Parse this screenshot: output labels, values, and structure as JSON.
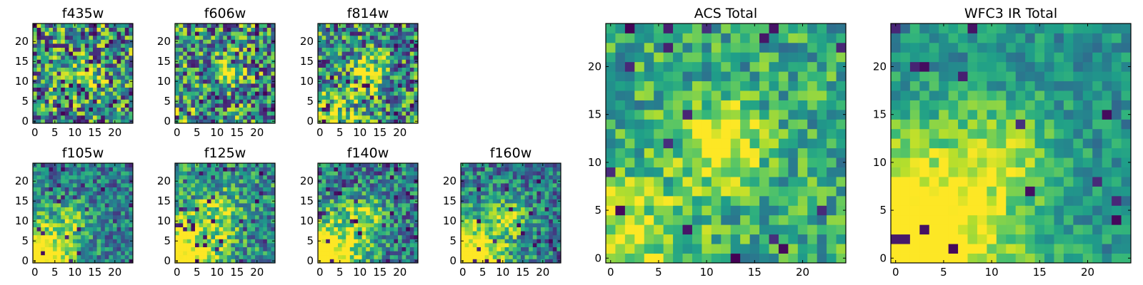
{
  "figure": {
    "colormap": "viridis",
    "grid_size": 25,
    "value_range": [
      0,
      1
    ]
  },
  "chart_data": [
    {
      "type": "heatmap",
      "title": "f435w",
      "xticks": [
        0,
        5,
        10,
        15,
        20
      ],
      "yticks": [
        0,
        5,
        10,
        15,
        20
      ],
      "xlim": [
        0,
        24
      ],
      "ylim": [
        0,
        24
      ],
      "seed": 11,
      "noise": 0.95,
      "blobs": [
        {
          "x": 13,
          "y": 12,
          "r": 2.2,
          "a": 0.55
        },
        {
          "x": 0,
          "y": 0,
          "r": 3,
          "a": 0.1
        }
      ],
      "dark_frac": 0.07,
      "base": 0.5
    },
    {
      "type": "heatmap",
      "title": "f606w",
      "xticks": [
        0,
        5,
        10,
        15,
        20
      ],
      "yticks": [
        0,
        5,
        10,
        15,
        20
      ],
      "xlim": [
        0,
        24
      ],
      "ylim": [
        0,
        24
      ],
      "seed": 23,
      "noise": 0.9,
      "blobs": [
        {
          "x": 12,
          "y": 12,
          "r": 2.2,
          "a": 0.55
        },
        {
          "x": 0,
          "y": 0,
          "r": 3,
          "a": 0.35
        }
      ],
      "dark_frac": 0.07,
      "base": 0.52
    },
    {
      "type": "heatmap",
      "title": "f814w",
      "xticks": [
        0,
        5,
        10,
        15,
        20
      ],
      "yticks": [
        0,
        5,
        10,
        15,
        20
      ],
      "xlim": [
        0,
        24
      ],
      "ylim": [
        0,
        24
      ],
      "seed": 37,
      "noise": 0.85,
      "blobs": [
        {
          "x": 12,
          "y": 12,
          "r": 3,
          "a": 0.45
        },
        {
          "x": 0,
          "y": 0,
          "r": 5,
          "a": 0.55
        }
      ],
      "dark_frac": 0.06,
      "base": 0.5
    },
    {
      "type": "heatmap",
      "title": "f105w",
      "xticks": [
        0,
        5,
        10,
        15,
        20
      ],
      "yticks": [
        0,
        5,
        10,
        15,
        20
      ],
      "xlim": [
        0,
        24
      ],
      "ylim": [
        0,
        24
      ],
      "seed": 41,
      "noise": 0.55,
      "blobs": [
        {
          "x": 10,
          "y": 11,
          "r": 3,
          "a": 0.25
        },
        {
          "x": 0,
          "y": 0,
          "r": 7,
          "a": 0.9
        }
      ],
      "dark_frac": 0.05,
      "base": 0.42
    },
    {
      "type": "heatmap",
      "title": "f125w",
      "xticks": [
        0,
        5,
        10,
        15,
        20
      ],
      "yticks": [
        0,
        5,
        10,
        15,
        20
      ],
      "xlim": [
        0,
        24
      ],
      "ylim": [
        0,
        24
      ],
      "seed": 53,
      "noise": 0.65,
      "blobs": [
        {
          "x": 11,
          "y": 12,
          "r": 4,
          "a": 0.3
        },
        {
          "x": 0,
          "y": 0,
          "r": 7,
          "a": 0.8
        }
      ],
      "dark_frac": 0.06,
      "base": 0.5
    },
    {
      "type": "heatmap",
      "title": "f140w",
      "xticks": [
        0,
        5,
        10,
        15,
        20
      ],
      "yticks": [
        0,
        5,
        10,
        15,
        20
      ],
      "xlim": [
        0,
        24
      ],
      "ylim": [
        0,
        24
      ],
      "seed": 67,
      "noise": 0.6,
      "blobs": [
        {
          "x": 11,
          "y": 11,
          "r": 3.5,
          "a": 0.35
        },
        {
          "x": 0,
          "y": 0,
          "r": 7,
          "a": 0.9
        }
      ],
      "dark_frac": 0.06,
      "base": 0.45
    },
    {
      "type": "heatmap",
      "title": "f160w",
      "xticks": [
        0,
        5,
        10,
        15,
        20
      ],
      "yticks": [
        0,
        5,
        10,
        15,
        20
      ],
      "xlim": [
        0,
        24
      ],
      "ylim": [
        0,
        24
      ],
      "seed": 79,
      "noise": 0.6,
      "blobs": [
        {
          "x": 11,
          "y": 11,
          "r": 3.5,
          "a": 0.35
        },
        {
          "x": 0,
          "y": 0,
          "r": 7,
          "a": 0.9
        }
      ],
      "dark_frac": 0.05,
      "base": 0.42
    },
    {
      "type": "heatmap",
      "title": "ACS Total",
      "xticks": [
        0,
        5,
        10,
        15,
        20
      ],
      "yticks": [
        0,
        5,
        10,
        15,
        20
      ],
      "xlim": [
        0,
        24
      ],
      "ylim": [
        0,
        24
      ],
      "seed": 97,
      "noise": 0.5,
      "blobs": [
        {
          "x": 12,
          "y": 12,
          "r": 2.8,
          "a": 0.5
        },
        {
          "x": 0,
          "y": 1,
          "r": 6,
          "a": 0.35
        }
      ],
      "dark_frac": 0.035,
      "base": 0.6
    },
    {
      "type": "heatmap",
      "title": "WFC3 IR Total",
      "xticks": [
        0,
        5,
        10,
        15,
        20
      ],
      "yticks": [
        0,
        5,
        10,
        15,
        20
      ],
      "xlim": [
        0,
        24
      ],
      "ylim": [
        0,
        24
      ],
      "seed": 113,
      "noise": 0.35,
      "blobs": [
        {
          "x": 11,
          "y": 11,
          "r": 4,
          "a": 0.3
        },
        {
          "x": 0,
          "y": 0,
          "r": 8,
          "a": 0.85
        }
      ],
      "dark_frac": 0.02,
      "base": 0.5
    }
  ]
}
